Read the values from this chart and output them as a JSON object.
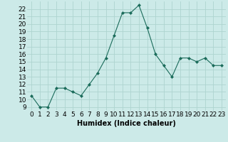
{
  "x": [
    0,
    1,
    2,
    3,
    4,
    5,
    6,
    7,
    8,
    9,
    10,
    11,
    12,
    13,
    14,
    15,
    16,
    17,
    18,
    19,
    20,
    21,
    22,
    23
  ],
  "y": [
    10.5,
    9.0,
    9.0,
    11.5,
    11.5,
    11.0,
    10.5,
    12.0,
    13.5,
    15.5,
    18.5,
    21.5,
    21.5,
    22.5,
    19.5,
    16.0,
    14.5,
    13.0,
    15.5,
    15.5,
    15.0,
    15.5,
    14.5,
    14.5
  ],
  "line_color": "#1a6b5a",
  "marker": "D",
  "marker_size": 2,
  "background_color": "#cceae8",
  "grid_color": "#aed4d0",
  "xlabel": "Humidex (Indice chaleur)",
  "ytick_min": 9,
  "ytick_max": 22,
  "xlim": [
    -0.5,
    23.5
  ],
  "ylim": [
    8.5,
    23.0
  ],
  "xlabel_fontsize": 7,
  "tick_fontsize": 6.5
}
